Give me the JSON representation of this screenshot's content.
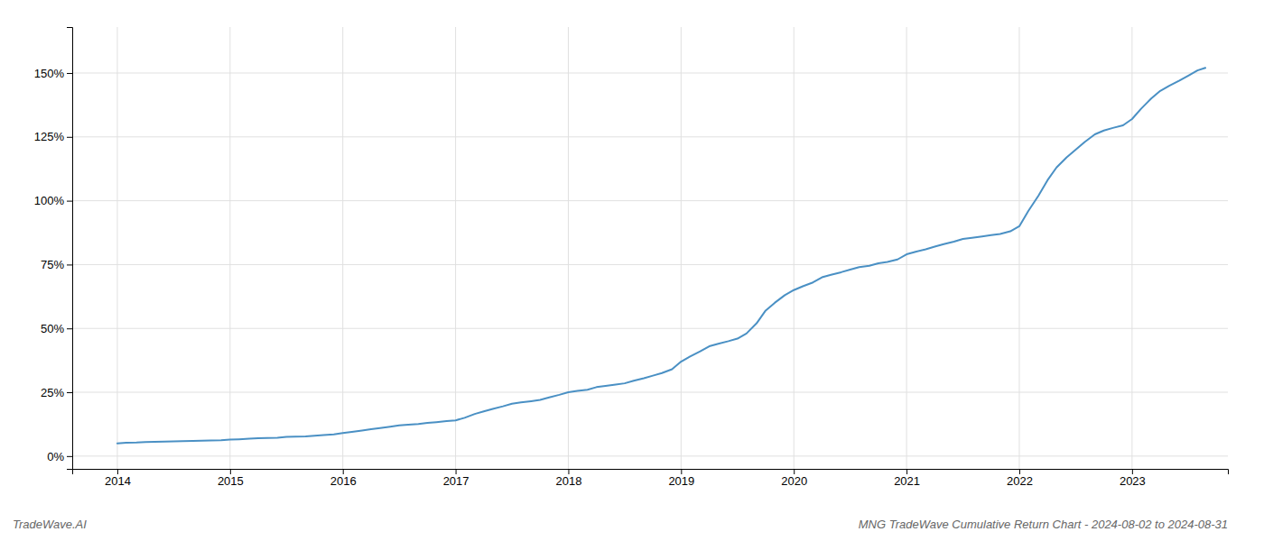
{
  "chart_data": {
    "type": "line",
    "title": "MNG TradeWave Cumulative Return Chart - 2024-08-02 to 2024-08-31",
    "annotations": [
      "TradeWave.AI"
    ],
    "color": "#4a90c4",
    "grid": true,
    "x": [
      2014.0,
      2014.08,
      2014.17,
      2014.25,
      2014.33,
      2014.42,
      2014.5,
      2014.58,
      2014.67,
      2014.75,
      2014.83,
      2014.92,
      2015.0,
      2015.08,
      2015.17,
      2015.25,
      2015.33,
      2015.42,
      2015.5,
      2015.58,
      2015.67,
      2015.75,
      2015.83,
      2015.92,
      2016.0,
      2016.08,
      2016.17,
      2016.25,
      2016.33,
      2016.42,
      2016.5,
      2016.58,
      2016.67,
      2016.75,
      2016.83,
      2016.92,
      2017.0,
      2017.08,
      2017.17,
      2017.25,
      2017.33,
      2017.42,
      2017.5,
      2017.58,
      2017.67,
      2017.75,
      2017.83,
      2017.92,
      2018.0,
      2018.08,
      2018.17,
      2018.25,
      2018.33,
      2018.42,
      2018.5,
      2018.58,
      2018.67,
      2018.75,
      2018.83,
      2018.92,
      2019.0,
      2019.08,
      2019.17,
      2019.25,
      2019.33,
      2019.42,
      2019.5,
      2019.58,
      2019.67,
      2019.75,
      2019.83,
      2019.92,
      2020.0,
      2020.08,
      2020.17,
      2020.25,
      2020.33,
      2020.42,
      2020.5,
      2020.58,
      2020.67,
      2020.75,
      2020.83,
      2020.92,
      2021.0,
      2021.08,
      2021.17,
      2021.25,
      2021.33,
      2021.42,
      2021.5,
      2021.58,
      2021.67,
      2021.75,
      2021.83,
      2021.92,
      2022.0,
      2022.08,
      2022.17,
      2022.25,
      2022.33,
      2022.42,
      2022.5,
      2022.58,
      2022.67,
      2022.75,
      2022.83,
      2022.92,
      2023.0,
      2023.08,
      2023.17,
      2023.25,
      2023.33,
      2023.42,
      2023.5,
      2023.58,
      2023.65
    ],
    "values": [
      5.0,
      5.2,
      5.3,
      5.5,
      5.6,
      5.7,
      5.8,
      5.9,
      5.95,
      6.0,
      6.1,
      6.25,
      6.5,
      6.6,
      6.8,
      7.0,
      7.1,
      7.2,
      7.5,
      7.6,
      7.7,
      8.0,
      8.2,
      8.5,
      9.0,
      9.5,
      10.0,
      10.5,
      11.0,
      11.5,
      12.0,
      12.3,
      12.6,
      13.0,
      13.3,
      13.7,
      14.0,
      15.0,
      16.5,
      17.5,
      18.5,
      19.5,
      20.5,
      21.0,
      21.5,
      22.0,
      23.0,
      24.0,
      25.0,
      25.5,
      26.0,
      27.0,
      27.5,
      28.0,
      28.5,
      29.5,
      30.5,
      31.5,
      32.5,
      34.0,
      37.0,
      39.0,
      41.0,
      43.0,
      44.0,
      45.0,
      46.0,
      48.0,
      52.0,
      57.0,
      60.0,
      63.0,
      65.0,
      66.5,
      68.0,
      70.0,
      71.0,
      72.0,
      73.0,
      74.0,
      74.5,
      75.5,
      76.0,
      77.0,
      79.0,
      80.0,
      81.0,
      82.0,
      83.0,
      84.0,
      85.0,
      85.5,
      86.0,
      86.5,
      87.0,
      88.0,
      90.0,
      96.0,
      102.0,
      108.0,
      113.0,
      117.0,
      120.0,
      123.0,
      126.0,
      127.5,
      128.5,
      129.5,
      132.0,
      136.0,
      140.0,
      143.0,
      145.0,
      147.0,
      149.0,
      151.0,
      152.0
    ],
    "xlim": [
      2013.6,
      2023.85
    ],
    "xticks": [
      2014,
      2015,
      2016,
      2017,
      2018,
      2019,
      2020,
      2021,
      2022,
      2023
    ],
    "ylim": [
      -5,
      168
    ],
    "yticks": [
      {
        "value": 0,
        "label": "0%"
      },
      {
        "value": 25,
        "label": "25%"
      },
      {
        "value": 50,
        "label": "50%"
      },
      {
        "value": 75,
        "label": "75%"
      },
      {
        "value": 100,
        "label": "100%"
      },
      {
        "value": 125,
        "label": "125%"
      },
      {
        "value": 150,
        "label": "150%"
      }
    ]
  }
}
